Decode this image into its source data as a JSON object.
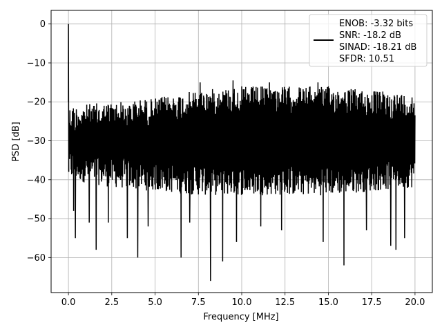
{
  "chart_data": {
    "type": "line",
    "title": "",
    "xlabel": "Frequency [MHz]",
    "ylabel": "PSD [dB]",
    "xlim": [
      -1.0,
      21.0
    ],
    "ylim": [
      -69.0,
      3.5
    ],
    "xticks": [
      0.0,
      2.5,
      5.0,
      7.5,
      10.0,
      12.5,
      15.0,
      17.5,
      20.0
    ],
    "xtick_labels": [
      "0.0",
      "2.5",
      "5.0",
      "7.5",
      "10.0",
      "12.5",
      "15.0",
      "17.5",
      "20.0"
    ],
    "yticks": [
      0,
      -10,
      -20,
      -30,
      -40,
      -50,
      -60
    ],
    "ytick_labels": [
      "0",
      "−10",
      "−20",
      "−30",
      "−40",
      "−50",
      "−60"
    ],
    "grid": true,
    "line_color": "#000000",
    "legend": {
      "placement": "top-right",
      "lines": [
        "ENOB: -3.32 bits",
        "SNR: -18.2 dB",
        "SINAD: -18.21 dB",
        "SFDR: 10.51"
      ]
    },
    "series": [
      {
        "style": "noise-floor-spectrum",
        "x_range": [
          0.0,
          20.0
        ],
        "peak": {
          "x": 0.0,
          "y": 0.0
        },
        "upper_envelope": {
          "x": [
            0.0,
            2.5,
            5.0,
            7.5,
            10.0,
            12.5,
            15.0,
            17.5,
            20.0
          ],
          "y": [
            -21,
            -20,
            -19,
            -17,
            -16,
            -16,
            -16,
            -17,
            -18
          ]
        },
        "lower_envelope": {
          "x": [
            0.0,
            2.5,
            5.0,
            7.5,
            10.0,
            12.5,
            15.0,
            17.5,
            20.0
          ],
          "y": [
            -40,
            -42,
            -43,
            -44,
            -44,
            -44,
            -44,
            -43,
            -42
          ]
        },
        "dips": [
          {
            "x": 0.3,
            "y": -48
          },
          {
            "x": 0.4,
            "y": -55
          },
          {
            "x": 1.2,
            "y": -51
          },
          {
            "x": 1.6,
            "y": -58
          },
          {
            "x": 2.3,
            "y": -51
          },
          {
            "x": 3.4,
            "y": -55
          },
          {
            "x": 4.0,
            "y": -60
          },
          {
            "x": 4.6,
            "y": -52
          },
          {
            "x": 6.5,
            "y": -60
          },
          {
            "x": 7.0,
            "y": -51
          },
          {
            "x": 8.2,
            "y": -66
          },
          {
            "x": 8.9,
            "y": -61
          },
          {
            "x": 9.7,
            "y": -56
          },
          {
            "x": 11.1,
            "y": -52
          },
          {
            "x": 12.3,
            "y": -53
          },
          {
            "x": 14.7,
            "y": -56
          },
          {
            "x": 15.9,
            "y": -62
          },
          {
            "x": 17.2,
            "y": -53
          },
          {
            "x": 18.6,
            "y": -57
          },
          {
            "x": 18.9,
            "y": -58
          },
          {
            "x": 19.4,
            "y": -55
          }
        ],
        "peaks": [
          {
            "x": 7.6,
            "y": -15
          },
          {
            "x": 9.5,
            "y": -14.5
          },
          {
            "x": 11.6,
            "y": -15
          },
          {
            "x": 14.4,
            "y": -15
          }
        ]
      }
    ]
  }
}
